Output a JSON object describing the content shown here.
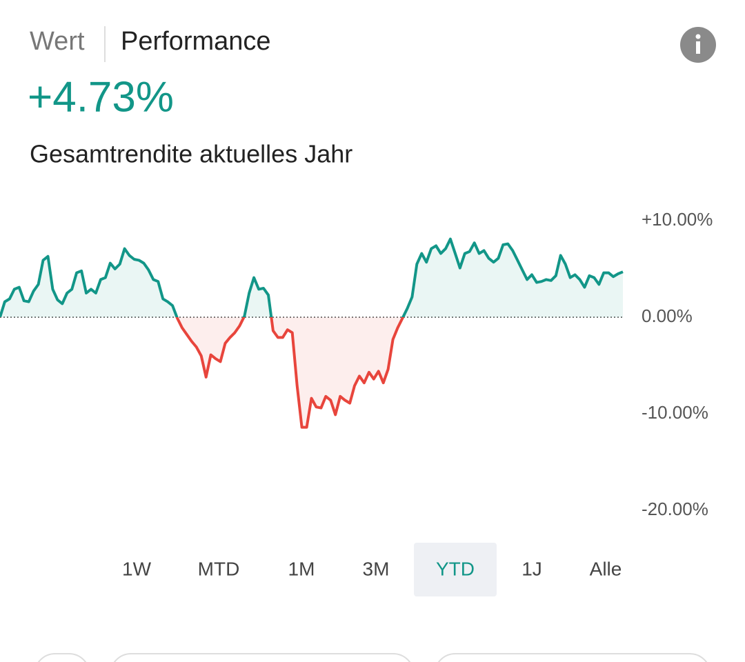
{
  "tabs": [
    "Wert",
    "Performance"
  ],
  "active_tab": 1,
  "headline": "+4.73%",
  "subtitle": "Gesamtrendite aktuelles Jahr",
  "chart_data": {
    "type": "line",
    "positive_color": "#129688",
    "negative_color": "#e8453c",
    "values": [
      0,
      1.6,
      1.9,
      2.9,
      3.1,
      1.7,
      1.6,
      2.7,
      3.4,
      5.9,
      6.3,
      2.9,
      1.8,
      1.4,
      2.5,
      2.9,
      4.6,
      4.8,
      2.5,
      2.9,
      2.5,
      3.9,
      4.1,
      5.6,
      5.0,
      5.5,
      7.1,
      6.4,
      6.0,
      5.9,
      5.6,
      4.9,
      3.9,
      3.7,
      1.9,
      1.6,
      1.2,
      -0.1,
      -1.1,
      -1.8,
      -2.5,
      -3.1,
      -4.0,
      -6.2,
      -3.9,
      -4.3,
      -4.6,
      -2.7,
      -2.1,
      -1.6,
      -0.9,
      0.1,
      2.5,
      4.1,
      2.9,
      3.0,
      2.3,
      -1.4,
      -2.1,
      -2.1,
      -1.3,
      -1.6,
      -7.1,
      -11.4,
      -11.4,
      -8.4,
      -9.3,
      -9.4,
      -8.2,
      -8.6,
      -10.1,
      -8.2,
      -8.6,
      -8.9,
      -7.1,
      -6.1,
      -6.8,
      -5.7,
      -6.4,
      -5.6,
      -6.8,
      -5.4,
      -2.3,
      -1.1,
      -0.1,
      0.9,
      2.1,
      5.5,
      6.6,
      5.7,
      7.1,
      7.4,
      6.6,
      7.1,
      8.1,
      6.6,
      5.1,
      6.6,
      6.8,
      7.7,
      6.6,
      6.9,
      6.1,
      5.7,
      6.1,
      7.5,
      7.6,
      6.9,
      5.9,
      4.9,
      3.9,
      4.4,
      3.6,
      3.7,
      3.9,
      3.8,
      4.3,
      6.4,
      5.5,
      4.1,
      4.4,
      3.9,
      3.1,
      4.3,
      4.1,
      3.4,
      4.6,
      4.6,
      4.2,
      4.5,
      4.7
    ],
    "ylim": [
      -20,
      10
    ],
    "yticks": [
      {
        "value": 10,
        "label": "+10.00%"
      },
      {
        "value": 0,
        "label": "0.00%"
      },
      {
        "value": -10,
        "label": "-10.00%"
      },
      {
        "value": -20,
        "label": "-20.00%"
      }
    ]
  },
  "ranges": [
    "1W",
    "MTD",
    "1M",
    "3M",
    "YTD",
    "1J",
    "Alle"
  ],
  "selected_range": 4
}
